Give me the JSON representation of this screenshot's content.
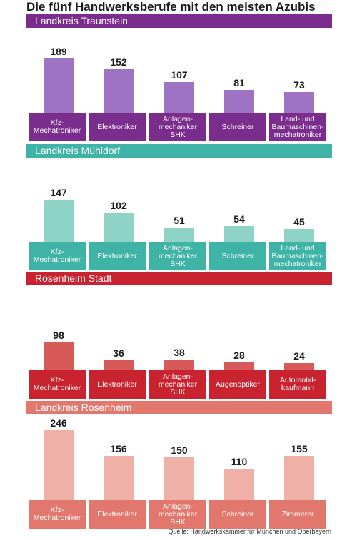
{
  "title": "Die fünf Handwerksberufe mit den meisten Azubis",
  "source": "Quelle: Handwerkskammer für München und Oberbayern",
  "colors": {
    "purple_header": "#7b2d8e",
    "purple_bar": "#9f73c4",
    "purple_label": "#7b2d8e",
    "teal_header": "#3fb4a6",
    "teal_bar": "#8fd3c7",
    "teal_label": "#3fb4a6",
    "red_header": "#c8232f",
    "red_bar": "#d85a58",
    "red_label": "#c8232f",
    "salmon_header": "#e2776d",
    "salmon_bar": "#efb1a7",
    "salmon_label": "#e2776d"
  },
  "chart_data": [
    {
      "type": "bar",
      "title": "Landkreis Traunstein",
      "categories": [
        "Kfz-\nMechatroniker",
        "Elektroniker",
        "Anlagen-\nmechaniker\nSHK",
        "Schreiner",
        "Land- und\nBaumaschinen-\nmechatroniker"
      ],
      "values": [
        189,
        152,
        107,
        81,
        73
      ],
      "header_color": "#7b2d8e",
      "bar_color": "#9f73c4",
      "label_color": "#7b2d8e"
    },
    {
      "type": "bar",
      "title": "Landkreis Mühldorf",
      "categories": [
        "Kfz-\nMechatroniker",
        "Elektroniker",
        "Anlagen-\nmechaniker\nSHK",
        "Schreiner",
        "Land- und\nBaumaschinen-\nmechatroniker"
      ],
      "values": [
        147,
        102,
        51,
        54,
        45
      ],
      "header_color": "#3fb4a6",
      "bar_color": "#8fd3c7",
      "label_color": "#3fb4a6"
    },
    {
      "type": "bar",
      "title": "Rosenheim Stadt",
      "categories": [
        "Kfz-\nMechatroniker",
        "Elektroniker",
        "Anlagen-\nmechaniker\nSHK",
        "Augenoptiker",
        "Automobil-\nkaufmann"
      ],
      "values": [
        98,
        36,
        38,
        28,
        24
      ],
      "header_color": "#c8232f",
      "bar_color": "#d85a58",
      "label_color": "#c8232f"
    },
    {
      "type": "bar",
      "title": "Landkreis Rosenheim",
      "categories": [
        "Kfz-\nMechatroniker",
        "Elektroniker",
        "Anlagen-\nmechaniker\nSHK",
        "Schreiner",
        "Zimmerer"
      ],
      "values": [
        246,
        156,
        150,
        110,
        155
      ],
      "header_color": "#e2776d",
      "bar_color": "#efb1a7",
      "label_color": "#e2776d"
    }
  ]
}
